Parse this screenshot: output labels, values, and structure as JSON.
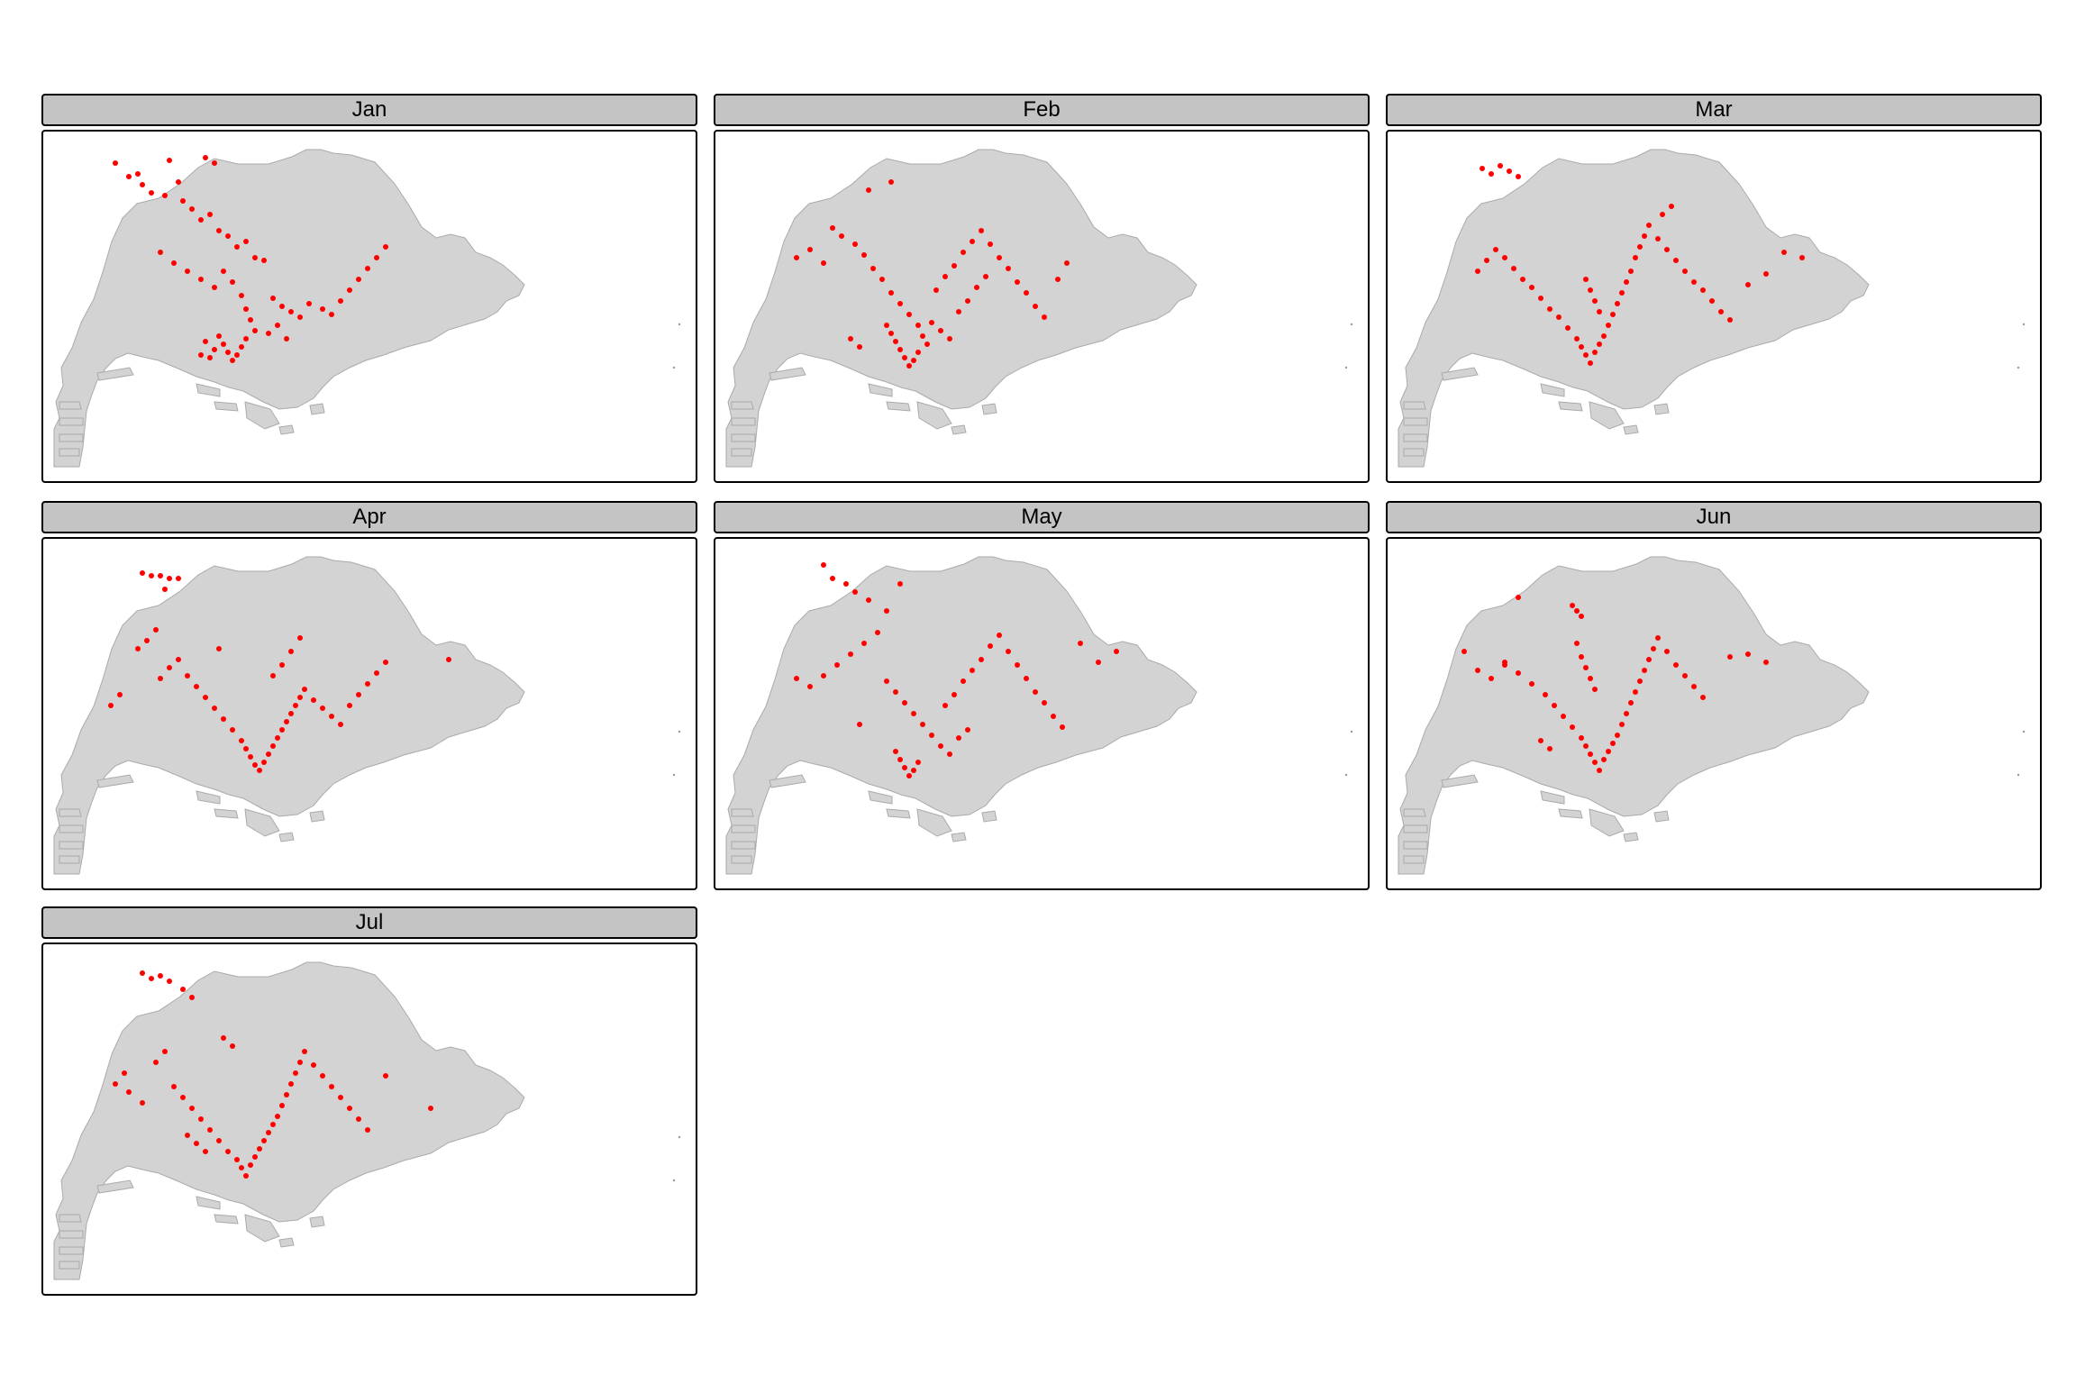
{
  "colors": {
    "land": "#d3d3d3",
    "point": "#ff0000",
    "strip": "#c4c4c4"
  },
  "panels": [
    {
      "month": "Jan",
      "points": [
        [
          1.0,
          9.5
        ],
        [
          1.3,
          9.0
        ],
        [
          1.5,
          9.1
        ],
        [
          1.6,
          8.7
        ],
        [
          1.8,
          8.4
        ],
        [
          2.1,
          8.3
        ],
        [
          2.4,
          8.8
        ],
        [
          2.2,
          9.6
        ],
        [
          2.5,
          8.1
        ],
        [
          2.7,
          7.8
        ],
        [
          2.9,
          7.4
        ],
        [
          3.1,
          7.6
        ],
        [
          3.3,
          7.0
        ],
        [
          3.5,
          6.8
        ],
        [
          3.7,
          6.4
        ],
        [
          3.9,
          6.6
        ],
        [
          4.1,
          6.0
        ],
        [
          4.3,
          5.9
        ],
        [
          2.0,
          6.2
        ],
        [
          2.3,
          5.8
        ],
        [
          2.6,
          5.5
        ],
        [
          2.9,
          5.2
        ],
        [
          3.2,
          4.9
        ],
        [
          3.4,
          5.5
        ],
        [
          3.6,
          5.1
        ],
        [
          3.8,
          4.6
        ],
        [
          3.9,
          4.1
        ],
        [
          4.0,
          3.7
        ],
        [
          4.1,
          3.3
        ],
        [
          3.9,
          3.0
        ],
        [
          3.8,
          2.7
        ],
        [
          3.7,
          2.4
        ],
        [
          3.6,
          2.2
        ],
        [
          3.5,
          2.5
        ],
        [
          3.4,
          2.8
        ],
        [
          3.3,
          3.1
        ],
        [
          3.2,
          2.6
        ],
        [
          3.1,
          2.3
        ],
        [
          3.0,
          2.9
        ],
        [
          2.9,
          2.4
        ],
        [
          4.5,
          4.5
        ],
        [
          4.7,
          4.2
        ],
        [
          4.9,
          4.0
        ],
        [
          5.1,
          3.8
        ],
        [
          5.3,
          4.3
        ],
        [
          5.6,
          4.1
        ],
        [
          5.8,
          3.9
        ],
        [
          6.0,
          4.4
        ],
        [
          6.2,
          4.8
        ],
        [
          6.4,
          5.2
        ],
        [
          6.6,
          5.6
        ],
        [
          6.8,
          6.0
        ],
        [
          7.0,
          6.4
        ],
        [
          4.4,
          3.2
        ],
        [
          4.6,
          3.5
        ],
        [
          4.8,
          3.0
        ],
        [
          3.0,
          9.7
        ],
        [
          3.2,
          9.5
        ]
      ]
    },
    {
      "month": "Feb",
      "points": [
        [
          1.2,
          6.0
        ],
        [
          1.5,
          6.3
        ],
        [
          1.8,
          5.8
        ],
        [
          2.0,
          7.1
        ],
        [
          2.2,
          6.8
        ],
        [
          2.5,
          6.5
        ],
        [
          2.7,
          6.1
        ],
        [
          2.9,
          5.6
        ],
        [
          3.1,
          5.2
        ],
        [
          3.3,
          4.7
        ],
        [
          3.5,
          4.3
        ],
        [
          3.7,
          3.9
        ],
        [
          3.9,
          3.5
        ],
        [
          4.0,
          3.1
        ],
        [
          4.1,
          2.8
        ],
        [
          3.9,
          2.5
        ],
        [
          3.8,
          2.2
        ],
        [
          3.7,
          2.0
        ],
        [
          3.6,
          2.3
        ],
        [
          3.5,
          2.6
        ],
        [
          3.4,
          2.9
        ],
        [
          3.3,
          3.2
        ],
        [
          3.2,
          3.5
        ],
        [
          4.3,
          4.8
        ],
        [
          4.5,
          5.3
        ],
        [
          4.7,
          5.7
        ],
        [
          4.9,
          6.2
        ],
        [
          5.1,
          6.6
        ],
        [
          5.3,
          7.0
        ],
        [
          5.5,
          6.5
        ],
        [
          5.7,
          6.0
        ],
        [
          5.9,
          5.6
        ],
        [
          6.1,
          5.1
        ],
        [
          6.3,
          4.7
        ],
        [
          6.5,
          4.2
        ],
        [
          6.7,
          3.8
        ],
        [
          4.2,
          3.6
        ],
        [
          4.4,
          3.3
        ],
        [
          4.6,
          3.0
        ],
        [
          4.8,
          4.0
        ],
        [
          5.0,
          4.4
        ],
        [
          5.2,
          4.9
        ],
        [
          5.4,
          5.3
        ],
        [
          7.0,
          5.2
        ],
        [
          7.2,
          5.8
        ],
        [
          2.4,
          3.0
        ],
        [
          2.6,
          2.7
        ],
        [
          2.8,
          8.5
        ],
        [
          3.3,
          8.8
        ]
      ]
    },
    {
      "month": "Mar",
      "points": [
        [
          1.5,
          9.3
        ],
        [
          1.7,
          9.1
        ],
        [
          1.9,
          9.4
        ],
        [
          2.1,
          9.2
        ],
        [
          2.3,
          9.0
        ],
        [
          1.4,
          5.5
        ],
        [
          1.6,
          5.9
        ],
        [
          1.8,
          6.3
        ],
        [
          2.0,
          6.0
        ],
        [
          2.2,
          5.6
        ],
        [
          2.4,
          5.2
        ],
        [
          2.6,
          4.9
        ],
        [
          2.8,
          4.5
        ],
        [
          3.0,
          4.1
        ],
        [
          3.2,
          3.8
        ],
        [
          3.4,
          3.4
        ],
        [
          3.6,
          3.0
        ],
        [
          3.7,
          2.7
        ],
        [
          3.8,
          2.4
        ],
        [
          3.9,
          2.1
        ],
        [
          4.0,
          2.5
        ],
        [
          4.1,
          2.8
        ],
        [
          4.2,
          3.1
        ],
        [
          4.3,
          3.5
        ],
        [
          4.4,
          3.9
        ],
        [
          4.5,
          4.3
        ],
        [
          4.6,
          4.7
        ],
        [
          4.7,
          5.1
        ],
        [
          4.8,
          5.5
        ],
        [
          4.9,
          6.0
        ],
        [
          5.0,
          6.4
        ],
        [
          5.1,
          6.8
        ],
        [
          5.2,
          7.2
        ],
        [
          5.4,
          6.7
        ],
        [
          5.6,
          6.3
        ],
        [
          5.8,
          5.9
        ],
        [
          6.0,
          5.5
        ],
        [
          6.2,
          5.1
        ],
        [
          6.4,
          4.8
        ],
        [
          6.6,
          4.4
        ],
        [
          6.8,
          4.0
        ],
        [
          7.0,
          3.7
        ],
        [
          7.4,
          5.0
        ],
        [
          7.8,
          5.4
        ],
        [
          8.2,
          6.2
        ],
        [
          8.6,
          6.0
        ],
        [
          5.5,
          7.6
        ],
        [
          5.7,
          7.9
        ],
        [
          3.8,
          5.2
        ],
        [
          3.9,
          4.8
        ],
        [
          4.0,
          4.4
        ],
        [
          4.1,
          4.0
        ]
      ]
    },
    {
      "month": "Apr",
      "points": [
        [
          1.6,
          9.4
        ],
        [
          1.8,
          9.3
        ],
        [
          2.0,
          9.3
        ],
        [
          2.2,
          9.2
        ],
        [
          2.4,
          9.2
        ],
        [
          2.1,
          8.8
        ],
        [
          1.5,
          6.6
        ],
        [
          1.7,
          6.9
        ],
        [
          1.9,
          7.3
        ],
        [
          2.0,
          5.5
        ],
        [
          2.2,
          5.9
        ],
        [
          2.4,
          6.2
        ],
        [
          2.6,
          5.6
        ],
        [
          2.8,
          5.2
        ],
        [
          3.0,
          4.8
        ],
        [
          3.2,
          4.4
        ],
        [
          3.4,
          4.0
        ],
        [
          3.6,
          3.6
        ],
        [
          3.8,
          3.2
        ],
        [
          3.9,
          2.9
        ],
        [
          4.0,
          2.6
        ],
        [
          4.1,
          2.3
        ],
        [
          4.2,
          2.1
        ],
        [
          4.3,
          2.4
        ],
        [
          4.4,
          2.7
        ],
        [
          4.5,
          3.0
        ],
        [
          4.6,
          3.3
        ],
        [
          4.7,
          3.6
        ],
        [
          4.8,
          3.9
        ],
        [
          4.9,
          4.2
        ],
        [
          5.0,
          4.5
        ],
        [
          5.1,
          4.8
        ],
        [
          5.2,
          5.1
        ],
        [
          5.4,
          4.7
        ],
        [
          5.6,
          4.4
        ],
        [
          5.8,
          4.1
        ],
        [
          6.0,
          3.8
        ],
        [
          6.2,
          4.5
        ],
        [
          6.4,
          4.9
        ],
        [
          6.6,
          5.3
        ],
        [
          6.8,
          5.7
        ],
        [
          7.0,
          6.1
        ],
        [
          4.5,
          5.6
        ],
        [
          4.7,
          6.0
        ],
        [
          4.9,
          6.5
        ],
        [
          5.1,
          7.0
        ],
        [
          8.4,
          6.2
        ],
        [
          0.9,
          4.5
        ],
        [
          1.1,
          4.9
        ],
        [
          3.3,
          6.6
        ]
      ]
    },
    {
      "month": "May",
      "points": [
        [
          1.8,
          9.7
        ],
        [
          2.0,
          9.2
        ],
        [
          2.3,
          9.0
        ],
        [
          2.5,
          8.7
        ],
        [
          2.8,
          8.4
        ],
        [
          3.2,
          8.0
        ],
        [
          3.5,
          9.0
        ],
        [
          1.2,
          5.5
        ],
        [
          1.5,
          5.2
        ],
        [
          1.8,
          5.6
        ],
        [
          2.1,
          6.0
        ],
        [
          2.4,
          6.4
        ],
        [
          2.7,
          6.8
        ],
        [
          3.0,
          7.2
        ],
        [
          3.2,
          5.4
        ],
        [
          3.4,
          5.0
        ],
        [
          3.6,
          4.6
        ],
        [
          3.8,
          4.2
        ],
        [
          4.0,
          3.8
        ],
        [
          4.2,
          3.4
        ],
        [
          4.4,
          3.0
        ],
        [
          4.6,
          2.7
        ],
        [
          3.9,
          2.4
        ],
        [
          3.8,
          2.1
        ],
        [
          3.7,
          1.9
        ],
        [
          3.6,
          2.2
        ],
        [
          3.5,
          2.5
        ],
        [
          3.4,
          2.8
        ],
        [
          4.5,
          4.5
        ],
        [
          4.7,
          4.9
        ],
        [
          4.9,
          5.4
        ],
        [
          5.1,
          5.8
        ],
        [
          5.3,
          6.2
        ],
        [
          5.5,
          6.7
        ],
        [
          5.7,
          7.1
        ],
        [
          5.9,
          6.5
        ],
        [
          6.1,
          6.0
        ],
        [
          6.3,
          5.5
        ],
        [
          6.5,
          5.0
        ],
        [
          6.7,
          4.6
        ],
        [
          6.9,
          4.1
        ],
        [
          7.1,
          3.7
        ],
        [
          7.5,
          6.8
        ],
        [
          7.9,
          6.1
        ],
        [
          8.3,
          6.5
        ],
        [
          4.8,
          3.3
        ],
        [
          5.0,
          3.6
        ],
        [
          2.6,
          3.8
        ]
      ]
    },
    {
      "month": "Jun",
      "points": [
        [
          3.5,
          8.2
        ],
        [
          3.6,
          8.0
        ],
        [
          3.7,
          7.8
        ],
        [
          2.3,
          8.5
        ],
        [
          1.4,
          5.8
        ],
        [
          1.7,
          5.5
        ],
        [
          2.0,
          6.1
        ],
        [
          2.3,
          5.7
        ],
        [
          2.6,
          5.3
        ],
        [
          2.9,
          4.9
        ],
        [
          3.1,
          4.5
        ],
        [
          3.3,
          4.1
        ],
        [
          3.5,
          3.7
        ],
        [
          3.7,
          3.3
        ],
        [
          3.8,
          3.0
        ],
        [
          3.9,
          2.7
        ],
        [
          4.0,
          2.4
        ],
        [
          4.1,
          2.1
        ],
        [
          4.2,
          2.5
        ],
        [
          4.3,
          2.8
        ],
        [
          4.4,
          3.1
        ],
        [
          4.5,
          3.4
        ],
        [
          4.6,
          3.8
        ],
        [
          4.7,
          4.2
        ],
        [
          4.8,
          4.6
        ],
        [
          4.9,
          5.0
        ],
        [
          5.0,
          5.4
        ],
        [
          5.1,
          5.8
        ],
        [
          5.2,
          6.2
        ],
        [
          5.3,
          6.6
        ],
        [
          5.4,
          7.0
        ],
        [
          5.6,
          6.5
        ],
        [
          5.8,
          6.0
        ],
        [
          6.0,
          5.6
        ],
        [
          6.2,
          5.2
        ],
        [
          6.4,
          4.8
        ],
        [
          3.6,
          6.8
        ],
        [
          3.7,
          6.3
        ],
        [
          3.8,
          5.9
        ],
        [
          3.9,
          5.5
        ],
        [
          4.0,
          5.1
        ],
        [
          7.0,
          6.3
        ],
        [
          7.4,
          6.4
        ],
        [
          7.8,
          6.1
        ],
        [
          2.8,
          3.2
        ],
        [
          3.0,
          2.9
        ],
        [
          1.1,
          6.5
        ],
        [
          2.0,
          6.0
        ]
      ]
    },
    {
      "month": "Jul",
      "points": [
        [
          1.6,
          9.6
        ],
        [
          1.8,
          9.4
        ],
        [
          2.0,
          9.5
        ],
        [
          2.2,
          9.3
        ],
        [
          2.5,
          9.0
        ],
        [
          2.7,
          8.7
        ],
        [
          1.0,
          5.5
        ],
        [
          1.2,
          5.9
        ],
        [
          1.3,
          5.2
        ],
        [
          1.6,
          4.8
        ],
        [
          1.9,
          6.3
        ],
        [
          2.1,
          6.7
        ],
        [
          2.3,
          5.4
        ],
        [
          2.5,
          5.0
        ],
        [
          2.7,
          4.6
        ],
        [
          2.9,
          4.2
        ],
        [
          3.1,
          3.8
        ],
        [
          3.3,
          3.4
        ],
        [
          3.5,
          3.0
        ],
        [
          3.7,
          2.7
        ],
        [
          3.8,
          2.4
        ],
        [
          3.9,
          2.1
        ],
        [
          4.0,
          2.5
        ],
        [
          4.1,
          2.8
        ],
        [
          4.2,
          3.1
        ],
        [
          4.3,
          3.4
        ],
        [
          4.4,
          3.7
        ],
        [
          4.5,
          4.0
        ],
        [
          4.6,
          4.3
        ],
        [
          4.7,
          4.7
        ],
        [
          4.8,
          5.1
        ],
        [
          4.9,
          5.5
        ],
        [
          5.0,
          5.9
        ],
        [
          5.1,
          6.3
        ],
        [
          5.2,
          6.7
        ],
        [
          5.4,
          6.2
        ],
        [
          5.6,
          5.8
        ],
        [
          5.8,
          5.4
        ],
        [
          6.0,
          5.0
        ],
        [
          6.2,
          4.6
        ],
        [
          6.4,
          4.2
        ],
        [
          6.6,
          3.8
        ],
        [
          3.0,
          3.0
        ],
        [
          2.8,
          3.3
        ],
        [
          2.6,
          3.6
        ],
        [
          7.0,
          5.8
        ],
        [
          8.0,
          4.6
        ],
        [
          3.4,
          7.2
        ],
        [
          3.6,
          6.9
        ]
      ]
    }
  ]
}
